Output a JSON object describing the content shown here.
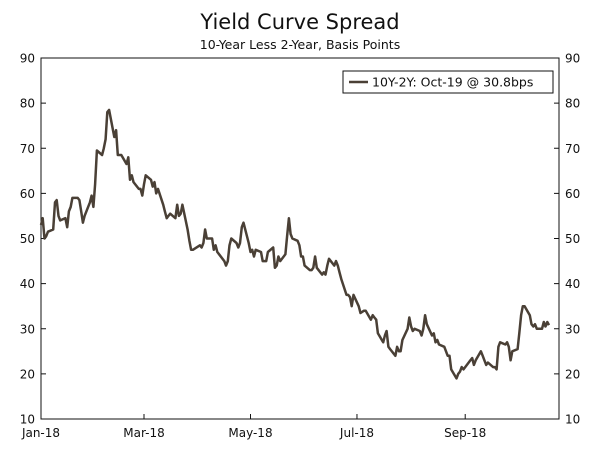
{
  "chart_data": {
    "type": "line",
    "title": "Yield Curve Spread",
    "subtitle": "10-Year Less 2-Year, Basis Points",
    "xlabel": "",
    "ylabel": "",
    "ylim": [
      10,
      90
    ],
    "yticks": [
      10,
      20,
      30,
      40,
      50,
      60,
      70,
      80,
      90
    ],
    "xlim": [
      "2018-01-01",
      "2018-10-19"
    ],
    "xtick_labels": [
      {
        "label": "Jan-18",
        "date": "2018-01-01"
      },
      {
        "label": "Mar-18",
        "date": "2018-03-01"
      },
      {
        "label": "May-18",
        "date": "2018-05-01"
      },
      {
        "label": "Jul-18",
        "date": "2018-07-01"
      },
      {
        "label": "Sep-18",
        "date": "2018-09-01"
      }
    ],
    "grid": false,
    "dual_y_axis": true,
    "line_color": "#4a4036",
    "legend_position": "top-right",
    "series": [
      {
        "name": "10Y-2Y: Oct-19 @ 30.8bps",
        "points": [
          [
            "2018-01-01",
            53
          ],
          [
            "2018-01-02",
            54.5
          ],
          [
            "2018-01-03",
            50
          ],
          [
            "2018-01-04",
            50.5
          ],
          [
            "2018-01-05",
            51.5
          ],
          [
            "2018-01-08",
            52
          ],
          [
            "2018-01-09",
            58
          ],
          [
            "2018-01-10",
            58.5
          ],
          [
            "2018-01-11",
            55
          ],
          [
            "2018-01-12",
            54
          ],
          [
            "2018-01-15",
            54.5
          ],
          [
            "2018-01-16",
            52.5
          ],
          [
            "2018-01-17",
            56
          ],
          [
            "2018-01-18",
            57
          ],
          [
            "2018-01-19",
            59
          ],
          [
            "2018-01-22",
            59
          ],
          [
            "2018-01-23",
            58.5
          ],
          [
            "2018-01-24",
            56
          ],
          [
            "2018-01-25",
            53.5
          ],
          [
            "2018-01-26",
            55
          ],
          [
            "2018-01-29",
            58
          ],
          [
            "2018-01-30",
            59.5
          ],
          [
            "2018-01-31",
            57
          ],
          [
            "2018-02-01",
            62
          ],
          [
            "2018-02-02",
            69.5
          ],
          [
            "2018-02-05",
            68.5
          ],
          [
            "2018-02-06",
            70
          ],
          [
            "2018-02-07",
            72
          ],
          [
            "2018-02-08",
            78
          ],
          [
            "2018-02-09",
            78.5
          ],
          [
            "2018-02-12",
            72.5
          ],
          [
            "2018-02-13",
            74
          ],
          [
            "2018-02-14",
            68.5
          ],
          [
            "2018-02-15",
            68.5
          ],
          [
            "2018-02-16",
            68.5
          ],
          [
            "2018-02-19",
            66.5
          ],
          [
            "2018-02-20",
            68
          ],
          [
            "2018-02-21",
            63
          ],
          [
            "2018-02-22",
            64
          ],
          [
            "2018-02-23",
            62.5
          ],
          [
            "2018-02-26",
            61
          ],
          [
            "2018-02-27",
            61
          ],
          [
            "2018-02-28",
            59.5
          ],
          [
            "2018-03-01",
            62
          ],
          [
            "2018-03-02",
            64
          ],
          [
            "2018-03-05",
            63
          ],
          [
            "2018-03-06",
            61.5
          ],
          [
            "2018-03-07",
            62.5
          ],
          [
            "2018-03-08",
            60
          ],
          [
            "2018-03-09",
            61
          ],
          [
            "2018-03-12",
            57.5
          ],
          [
            "2018-03-13",
            56
          ],
          [
            "2018-03-14",
            54.5
          ],
          [
            "2018-03-15",
            55
          ],
          [
            "2018-03-16",
            55.5
          ],
          [
            "2018-03-19",
            54.5
          ],
          [
            "2018-03-20",
            57.5
          ],
          [
            "2018-03-21",
            55
          ],
          [
            "2018-03-22",
            55.5
          ],
          [
            "2018-03-23",
            57.5
          ],
          [
            "2018-03-26",
            52
          ],
          [
            "2018-03-27",
            49.5
          ],
          [
            "2018-03-28",
            47.5
          ],
          [
            "2018-03-29",
            47.5
          ],
          [
            "2018-04-02",
            48.5
          ],
          [
            "2018-04-03",
            48
          ],
          [
            "2018-04-04",
            49
          ],
          [
            "2018-04-05",
            52
          ],
          [
            "2018-04-06",
            50
          ],
          [
            "2018-04-09",
            50
          ],
          [
            "2018-04-10",
            47.5
          ],
          [
            "2018-04-11",
            48.5
          ],
          [
            "2018-04-12",
            47
          ],
          [
            "2018-04-13",
            46.5
          ],
          [
            "2018-04-16",
            45
          ],
          [
            "2018-04-17",
            44
          ],
          [
            "2018-04-18",
            45
          ],
          [
            "2018-04-19",
            48.5
          ],
          [
            "2018-04-20",
            50
          ],
          [
            "2018-04-23",
            49
          ],
          [
            "2018-04-24",
            48
          ],
          [
            "2018-04-25",
            49
          ],
          [
            "2018-04-26",
            52.5
          ],
          [
            "2018-04-27",
            53.5
          ],
          [
            "2018-04-30",
            49
          ],
          [
            "2018-05-01",
            47
          ],
          [
            "2018-05-02",
            47.5
          ],
          [
            "2018-05-03",
            46
          ],
          [
            "2018-05-04",
            47.5
          ],
          [
            "2018-05-07",
            47
          ],
          [
            "2018-05-08",
            45
          ],
          [
            "2018-05-09",
            45
          ],
          [
            "2018-05-10",
            45
          ],
          [
            "2018-05-11",
            47
          ],
          [
            "2018-05-14",
            48
          ],
          [
            "2018-05-15",
            43.5
          ],
          [
            "2018-05-16",
            44
          ],
          [
            "2018-05-17",
            46
          ],
          [
            "2018-05-18",
            45
          ],
          [
            "2018-05-21",
            46.5
          ],
          [
            "2018-05-22",
            50.5
          ],
          [
            "2018-05-23",
            54.5
          ],
          [
            "2018-05-24",
            51
          ],
          [
            "2018-05-25",
            50
          ],
          [
            "2018-05-28",
            49.5
          ],
          [
            "2018-05-29",
            48.5
          ],
          [
            "2018-05-30",
            46
          ],
          [
            "2018-05-31",
            46
          ],
          [
            "2018-06-01",
            44
          ],
          [
            "2018-06-04",
            43
          ],
          [
            "2018-06-05",
            43
          ],
          [
            "2018-06-06",
            43.5
          ],
          [
            "2018-06-07",
            46
          ],
          [
            "2018-06-08",
            43.5
          ],
          [
            "2018-06-11",
            42
          ],
          [
            "2018-06-12",
            42.5
          ],
          [
            "2018-06-13",
            42
          ],
          [
            "2018-06-14",
            44
          ],
          [
            "2018-06-15",
            45.5
          ],
          [
            "2018-06-18",
            44
          ],
          [
            "2018-06-19",
            45
          ],
          [
            "2018-06-20",
            44
          ],
          [
            "2018-06-21",
            42.5
          ],
          [
            "2018-06-22",
            41
          ],
          [
            "2018-06-25",
            37.5
          ],
          [
            "2018-06-26",
            37.5
          ],
          [
            "2018-06-27",
            37
          ],
          [
            "2018-06-28",
            35
          ],
          [
            "2018-06-29",
            37.5
          ],
          [
            "2018-07-02",
            35
          ],
          [
            "2018-07-03",
            33.5
          ],
          [
            "2018-07-05",
            34
          ],
          [
            "2018-07-06",
            34
          ],
          [
            "2018-07-09",
            32
          ],
          [
            "2018-07-10",
            33
          ],
          [
            "2018-07-11",
            32.5
          ],
          [
            "2018-07-12",
            32
          ],
          [
            "2018-07-13",
            29
          ],
          [
            "2018-07-16",
            27
          ],
          [
            "2018-07-17",
            28.5
          ],
          [
            "2018-07-18",
            29.5
          ],
          [
            "2018-07-19",
            26
          ],
          [
            "2018-07-20",
            25.5
          ],
          [
            "2018-07-23",
            24
          ],
          [
            "2018-07-24",
            26
          ],
          [
            "2018-07-25",
            25
          ],
          [
            "2018-07-26",
            25
          ],
          [
            "2018-07-27",
            27.5
          ],
          [
            "2018-07-30",
            30
          ],
          [
            "2018-07-31",
            32.5
          ],
          [
            "2018-08-01",
            30.5
          ],
          [
            "2018-08-02",
            29.5
          ],
          [
            "2018-08-03",
            30
          ],
          [
            "2018-08-06",
            29.5
          ],
          [
            "2018-08-07",
            28.5
          ],
          [
            "2018-08-08",
            30
          ],
          [
            "2018-08-09",
            33
          ],
          [
            "2018-08-10",
            31
          ],
          [
            "2018-08-13",
            28.5
          ],
          [
            "2018-08-14",
            29
          ],
          [
            "2018-08-15",
            27
          ],
          [
            "2018-08-16",
            27.5
          ],
          [
            "2018-08-17",
            26.5
          ],
          [
            "2018-08-20",
            26
          ],
          [
            "2018-08-21",
            25
          ],
          [
            "2018-08-22",
            24
          ],
          [
            "2018-08-23",
            24
          ],
          [
            "2018-08-24",
            21
          ],
          [
            "2018-08-27",
            19
          ],
          [
            "2018-08-28",
            20
          ],
          [
            "2018-08-29",
            20.5
          ],
          [
            "2018-08-30",
            21.5
          ],
          [
            "2018-08-31",
            21
          ],
          [
            "2018-09-04",
            23
          ],
          [
            "2018-09-05",
            23.5
          ],
          [
            "2018-09-06",
            22
          ],
          [
            "2018-09-07",
            23
          ],
          [
            "2018-09-10",
            25
          ],
          [
            "2018-09-11",
            24
          ],
          [
            "2018-09-12",
            23
          ],
          [
            "2018-09-13",
            22
          ],
          [
            "2018-09-14",
            22.5
          ],
          [
            "2018-09-17",
            21.5
          ],
          [
            "2018-09-18",
            21.5
          ],
          [
            "2018-09-19",
            21
          ],
          [
            "2018-09-20",
            26
          ],
          [
            "2018-09-21",
            27
          ],
          [
            "2018-09-24",
            26.5
          ],
          [
            "2018-09-25",
            27
          ],
          [
            "2018-09-26",
            26
          ],
          [
            "2018-09-27",
            23
          ],
          [
            "2018-09-28",
            25
          ],
          [
            "2018-10-01",
            25.5
          ],
          [
            "2018-10-02",
            29
          ],
          [
            "2018-10-03",
            33
          ],
          [
            "2018-10-04",
            35
          ],
          [
            "2018-10-05",
            35
          ],
          [
            "2018-10-08",
            33
          ],
          [
            "2018-10-09",
            31
          ],
          [
            "2018-10-10",
            30.5
          ],
          [
            "2018-10-11",
            31
          ],
          [
            "2018-10-12",
            30
          ],
          [
            "2018-10-15",
            30
          ],
          [
            "2018-10-16",
            31.5
          ],
          [
            "2018-10-17",
            30.5
          ],
          [
            "2018-10-18",
            31.5
          ],
          [
            "2018-10-19",
            30.8
          ]
        ]
      }
    ]
  }
}
